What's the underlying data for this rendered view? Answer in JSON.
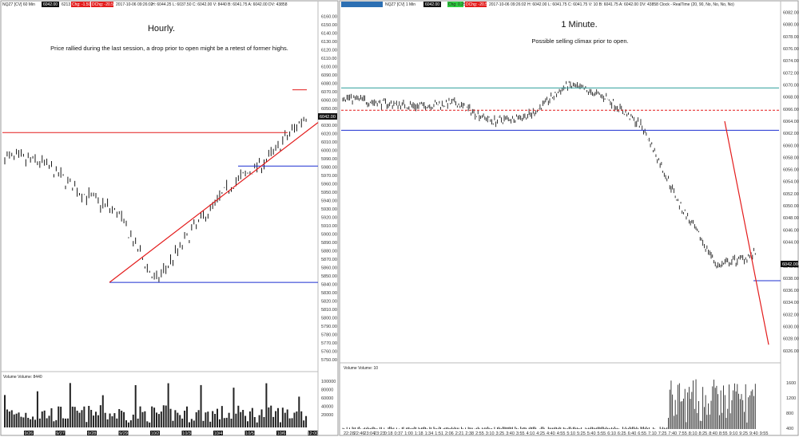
{
  "colors": {
    "red": "#e31c1c",
    "blue": "#1c2fd1",
    "teal": "#2a9d9a",
    "bar": "#000000",
    "paper": "#ffffff"
  },
  "left": {
    "header": {
      "symbol": "NQZ7 [CV] 60 Min",
      "last": "6042.00",
      "chg": "Chg: -1.50",
      "dchg": "DChg: -20.50",
      "date": "2017-10-06 09:26:02",
      "ohlc": "H: 6044.25  L: 6037.50  C: 6042.00  V: 8440  B: 6041.75  A: 6042.00  DV: 43858",
      "vol_box": "6213"
    },
    "title": "Hourly.",
    "subtitle": "Price rallied during the last session, a drop prior to open might be a retest of former highs.",
    "last_price": "6042.00",
    "y_ticks": [
      "6160.00",
      "6150.00",
      "6140.00",
      "6130.00",
      "6120.00",
      "6110.00",
      "6100.00",
      "6090.00",
      "6080.00",
      "6070.00",
      "6060.00",
      "6050.00",
      "6030.00",
      "6020.00",
      "6010.00",
      "6000.00",
      "5990.00",
      "5980.00",
      "5970.00",
      "5960.00",
      "5950.00",
      "5940.00",
      "5930.00",
      "5920.00",
      "5910.00",
      "5900.00",
      "5890.00",
      "5880.00",
      "5870.00",
      "5860.00",
      "5850.00",
      "5840.00",
      "5830.00",
      "5820.00",
      "5810.00",
      "5800.00",
      "5790.00",
      "5780.00",
      "5770.00",
      "5760.00",
      "5750.00"
    ],
    "vol_ticks": [
      "100000",
      "80000",
      "60000",
      "40000",
      "20000"
    ],
    "volume_label": "Volume  Volume: 8440",
    "x_labels": [
      "9/26",
      "9/27",
      "9/28",
      "9/29",
      "10/2",
      "10/3",
      "10/4",
      "10/5",
      "10/6",
      "12:00"
    ]
  },
  "right": {
    "header": {
      "symbol": "NQZ7 [CV] 1 Min",
      "last": "6042.00",
      "chg": "Chg: 0.25",
      "dchg": "DChg: -20.50",
      "date": "2017-10-06 09:26:02",
      "ohlc": "H: 6042.00  L: 6041.75  C: 6041.75  V: 10  B: 6041.75  A: 6042.00  DV: 43858  Clock - RealTime  (20, 90, No, No, No, No)"
    },
    "title": "1 Minute.",
    "subtitle": "Possible selling climax prior to open.",
    "last_price": "6042.00",
    "y_ticks": [
      "6082.00",
      "6080.00",
      "6078.00",
      "6076.00",
      "6074.00",
      "6072.00",
      "6070.00",
      "6068.00",
      "6066.00",
      "6064.00",
      "6062.00",
      "6060.00",
      "6058.00",
      "6056.00",
      "6054.00",
      "6052.00",
      "6050.00",
      "6048.00",
      "6046.00",
      "6044.00",
      "6040.00",
      "6038.00",
      "6036.00",
      "6034.00",
      "6032.00",
      "6030.00",
      "6028.00",
      "6026.00"
    ],
    "vol_ticks": [
      "1600",
      "1200",
      "800",
      "400"
    ],
    "volume_label": "Volume  Volume: 10",
    "x_labels": [
      "22:28",
      "22:46",
      "23:04",
      "23:23",
      "0:18",
      "0:37",
      "1:00",
      "1:18",
      "1:34",
      "1:51",
      "2:06",
      "2:21",
      "2:38",
      "2:55",
      "3:10",
      "3:25",
      "3:40",
      "3:55",
      "4:10",
      "4:25",
      "4:40",
      "4:55",
      "5:10",
      "5:25",
      "5:40",
      "5:55",
      "6:10",
      "6:25",
      "6:40",
      "6:55",
      "7:10",
      "7:25",
      "7:40",
      "7:55",
      "8:10",
      "8:25",
      "8:40",
      "8:55",
      "9:10",
      "9:25",
      "9:40",
      "9:55"
    ]
  },
  "chart_data": [
    {
      "type": "line",
      "title": "Hourly.",
      "x": [
        "9/26",
        "9/27",
        "9/28",
        "9/29",
        "10/2",
        "10/3",
        "10/4",
        "10/5",
        "10/6"
      ],
      "series": [
        {
          "values": [
            5992,
            5985,
            5950,
            5925,
            5842,
            5905,
            5958,
            5990,
            6042
          ]
        }
      ],
      "ylim": [
        5745,
        6165
      ],
      "annotations": [
        {
          "type": "hline",
          "color": "red",
          "y": 6021
        },
        {
          "type": "hline",
          "color": "blue",
          "y": 5981
        },
        {
          "type": "hline",
          "color": "blue",
          "y": 5842
        },
        {
          "type": "hline",
          "color": "red",
          "y": 6072
        },
        {
          "type": "trendline",
          "color": "red",
          "from": [
            5,
            5842
          ],
          "to": [
            9,
            6033
          ]
        }
      ]
    },
    {
      "type": "line",
      "title": "1 Minute.",
      "x": [
        "22:28",
        "0:18",
        "2:06",
        "3:40",
        "4:25",
        "5:25",
        "6:25",
        "7:25",
        "8:10",
        "8:40",
        "9:10",
        "9:25"
      ],
      "series": [
        {
          "values": [
            6068,
            6067,
            6066.5,
            6067,
            6064,
            6065,
            6070,
            6068,
            6063,
            6050,
            6040,
            6042
          ]
        }
      ],
      "ylim": [
        6024,
        6083
      ],
      "annotations": [
        {
          "type": "hline",
          "color": "teal",
          "y": 6069.5
        },
        {
          "type": "hline",
          "color": "red-dashed",
          "y": 6065.8
        },
        {
          "type": "hline",
          "color": "blue",
          "y": 6062.5
        },
        {
          "type": "hline",
          "color": "blue",
          "y": 6037.6
        },
        {
          "type": "trendline",
          "color": "red",
          "from": [
            "8:25",
            6064
          ],
          "to": [
            "9:40",
            6027
          ]
        }
      ]
    }
  ]
}
